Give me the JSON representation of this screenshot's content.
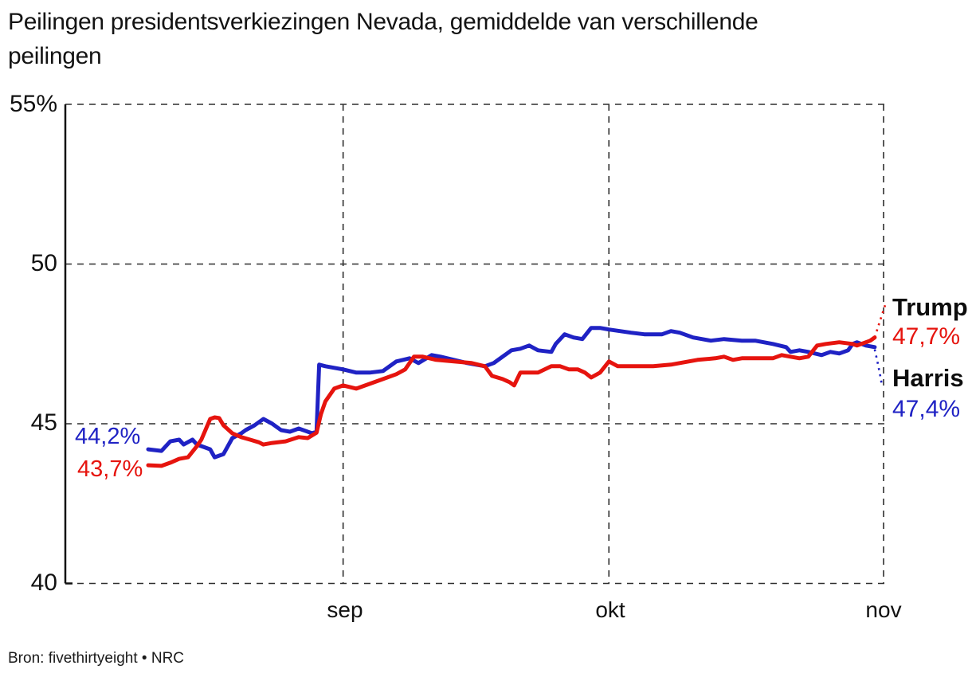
{
  "title": {
    "line1": "Peilingen presidentsverkiezingen Nevada, gemiddelde van verschillende",
    "line2": "peilingen"
  },
  "source": "Bron: fivethirtyeight • NRC",
  "colors": {
    "harris_blue": "#1f22c4",
    "trump_red": "#e6140e",
    "grid": "#2e2e2e",
    "axis": "#111111",
    "text": "#111111"
  },
  "y_axis": {
    "labels": [
      "55%",
      "50",
      "45",
      "40"
    ],
    "values": [
      55,
      50,
      45,
      40
    ]
  },
  "x_axis": {
    "labels": [
      "sep",
      "okt",
      "nov"
    ],
    "days": [
      22,
      52,
      83
    ]
  },
  "start_labels": {
    "harris": "44,2%",
    "trump": "43,7%"
  },
  "end_labels": {
    "trump_name": "Trump",
    "trump_value": "47,7%",
    "harris_name": "Harris",
    "harris_value": "47,4%"
  },
  "chart_data": {
    "type": "line",
    "title": "Peilingen presidentsverkiezingen Nevada, gemiddelde van verschillende peilingen",
    "xlabel": "",
    "ylabel": "%",
    "ylim": [
      40,
      55
    ],
    "y_ticks": [
      40,
      45,
      50,
      55
    ],
    "x_unit": "dagen (dag 0 ≈ 10 aug), ticks = maandbegin",
    "x_ticks": [
      {
        "label": "sep",
        "day": 22
      },
      {
        "label": "okt",
        "day": 52
      },
      {
        "label": "nov",
        "day": 83
      }
    ],
    "grid": "dashed",
    "legend_position": "line-end-labels",
    "series": [
      {
        "name": "Harris",
        "color": "#1f22c4",
        "start_value": 44.2,
        "end_value": 47.4,
        "points": [
          [
            0,
            44.2
          ],
          [
            1.5,
            44.15
          ],
          [
            2.5,
            44.45
          ],
          [
            3.5,
            44.5
          ],
          [
            4,
            44.35
          ],
          [
            5,
            44.5
          ],
          [
            5.5,
            44.35
          ],
          [
            6,
            44.3
          ],
          [
            7,
            44.2
          ],
          [
            7.5,
            43.95
          ],
          [
            8.5,
            44.05
          ],
          [
            9.5,
            44.55
          ],
          [
            10.5,
            44.7
          ],
          [
            11,
            44.8
          ],
          [
            12,
            44.95
          ],
          [
            13,
            45.15
          ],
          [
            14,
            45.0
          ],
          [
            14.5,
            44.9
          ],
          [
            15,
            44.8
          ],
          [
            16,
            44.75
          ],
          [
            17,
            44.85
          ],
          [
            17.5,
            44.8
          ],
          [
            18.5,
            44.7
          ],
          [
            19,
            44.75
          ],
          [
            19.3,
            46.85
          ],
          [
            20,
            46.8
          ],
          [
            21,
            46.75
          ],
          [
            22,
            46.7
          ],
          [
            23.5,
            46.6
          ],
          [
            25,
            46.6
          ],
          [
            26.5,
            46.65
          ],
          [
            28,
            46.95
          ],
          [
            29.5,
            47.05
          ],
          [
            30.5,
            46.9
          ],
          [
            32,
            47.15
          ],
          [
            33,
            47.1
          ],
          [
            34.5,
            47.0
          ],
          [
            36,
            46.9
          ],
          [
            38,
            46.8
          ],
          [
            39,
            46.9
          ],
          [
            40,
            47.1
          ],
          [
            41,
            47.3
          ],
          [
            42,
            47.35
          ],
          [
            43,
            47.45
          ],
          [
            44,
            47.3
          ],
          [
            45.5,
            47.25
          ],
          [
            46,
            47.5
          ],
          [
            47,
            47.8
          ],
          [
            48,
            47.7
          ],
          [
            49,
            47.65
          ],
          [
            50,
            48.0
          ],
          [
            51,
            48.0
          ],
          [
            52,
            47.95
          ],
          [
            54.5,
            47.85
          ],
          [
            56,
            47.8
          ],
          [
            58,
            47.8
          ],
          [
            59,
            47.9
          ],
          [
            60,
            47.85
          ],
          [
            61.5,
            47.7
          ],
          [
            62.5,
            47.65
          ],
          [
            63.5,
            47.6
          ],
          [
            65,
            47.65
          ],
          [
            67,
            47.6
          ],
          [
            68.5,
            47.6
          ],
          [
            70.5,
            47.5
          ],
          [
            72,
            47.4
          ],
          [
            72.5,
            47.25
          ],
          [
            73.5,
            47.3
          ],
          [
            74.5,
            47.25
          ],
          [
            76,
            47.15
          ],
          [
            77,
            47.25
          ],
          [
            78,
            47.2
          ],
          [
            79,
            47.3
          ],
          [
            79.5,
            47.5
          ],
          [
            80,
            47.55
          ],
          [
            81,
            47.45
          ],
          [
            82,
            47.4
          ]
        ]
      },
      {
        "name": "Trump",
        "color": "#e6140e",
        "start_value": 43.7,
        "end_value": 47.7,
        "points": [
          [
            0,
            43.7
          ],
          [
            1.5,
            43.68
          ],
          [
            2.5,
            43.78
          ],
          [
            3.5,
            43.9
          ],
          [
            4.5,
            43.95
          ],
          [
            5.5,
            44.3
          ],
          [
            6,
            44.5
          ],
          [
            7,
            45.15
          ],
          [
            7.5,
            45.2
          ],
          [
            8,
            45.18
          ],
          [
            8.5,
            44.95
          ],
          [
            9.5,
            44.7
          ],
          [
            10.5,
            44.58
          ],
          [
            11.5,
            44.5
          ],
          [
            12.5,
            44.42
          ],
          [
            13,
            44.35
          ],
          [
            14,
            44.4
          ],
          [
            15.5,
            44.45
          ],
          [
            17,
            44.58
          ],
          [
            18,
            44.55
          ],
          [
            19,
            44.72
          ],
          [
            19.5,
            45.3
          ],
          [
            20,
            45.7
          ],
          [
            21,
            46.1
          ],
          [
            22,
            46.2
          ],
          [
            23.5,
            46.1
          ],
          [
            25,
            46.25
          ],
          [
            26.5,
            46.4
          ],
          [
            28,
            46.55
          ],
          [
            29,
            46.7
          ],
          [
            30,
            47.1
          ],
          [
            31,
            47.1
          ],
          [
            32.5,
            47.0
          ],
          [
            34.5,
            46.95
          ],
          [
            36.5,
            46.9
          ],
          [
            38,
            46.8
          ],
          [
            38.8,
            46.5
          ],
          [
            40,
            46.4
          ],
          [
            40.8,
            46.3
          ],
          [
            41.3,
            46.2
          ],
          [
            42,
            46.6
          ],
          [
            44,
            46.6
          ],
          [
            45.5,
            46.8
          ],
          [
            46.5,
            46.8
          ],
          [
            47.5,
            46.7
          ],
          [
            48.5,
            46.7
          ],
          [
            49.3,
            46.6
          ],
          [
            50,
            46.45
          ],
          [
            51,
            46.6
          ],
          [
            52,
            46.95
          ],
          [
            53,
            46.8
          ],
          [
            55,
            46.8
          ],
          [
            57,
            46.8
          ],
          [
            59,
            46.85
          ],
          [
            60,
            46.9
          ],
          [
            62,
            47.0
          ],
          [
            64,
            47.05
          ],
          [
            65,
            47.1
          ],
          [
            66,
            47.0
          ],
          [
            67,
            47.05
          ],
          [
            68.5,
            47.05
          ],
          [
            70.5,
            47.05
          ],
          [
            71.5,
            47.15
          ],
          [
            72.5,
            47.1
          ],
          [
            73.5,
            47.05
          ],
          [
            74.5,
            47.1
          ],
          [
            75.5,
            47.45
          ],
          [
            76.5,
            47.5
          ],
          [
            78,
            47.55
          ],
          [
            79.5,
            47.5
          ],
          [
            80,
            47.45
          ],
          [
            81,
            47.55
          ],
          [
            81.5,
            47.6
          ],
          [
            82,
            47.7
          ]
        ]
      }
    ]
  }
}
